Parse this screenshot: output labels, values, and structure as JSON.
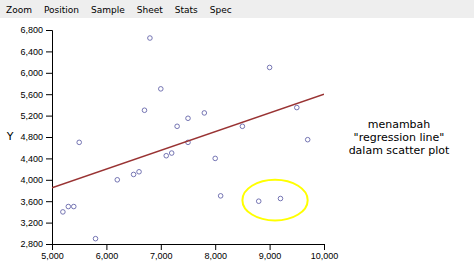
{
  "chart_data": {
    "type": "scatter",
    "ylabel": "Y",
    "annotation": "menambah\n\"regression line\"\ndalam scatter plot",
    "toolbar": [
      "Zoom",
      "Position",
      "Sample",
      "Sheet",
      "Stats",
      "Spec"
    ],
    "grid": false,
    "series": [
      {
        "type": "scatter",
        "marker": "circle",
        "color": "#6666aa",
        "x": [
          5200,
          5300,
          5400,
          5500,
          5800,
          6200,
          6500,
          6600,
          6700,
          6800,
          7000,
          7100,
          7200,
          7300,
          7500,
          7500,
          7800,
          8000,
          8100,
          8500,
          8800,
          9000,
          9200,
          9500,
          9700
        ],
        "values": [
          3400,
          3500,
          3500,
          4700,
          2900,
          4000,
          4100,
          4150,
          5300,
          6650,
          5700,
          4450,
          4500,
          5000,
          4700,
          5150,
          5250,
          4400,
          3700,
          5000,
          3600,
          6100,
          3650,
          5350,
          4750
        ]
      },
      {
        "type": "line",
        "line_style": "solid",
        "color": "#993333",
        "x": [
          5000,
          10000
        ],
        "values": [
          3850,
          5600
        ]
      }
    ],
    "highlight": {
      "x": 9100,
      "y": 3620,
      "rx": 600,
      "ry": 380,
      "color": "yellow"
    },
    "xlim": [
      5000,
      10000
    ],
    "ylim": [
      2800,
      6800
    ],
    "xticks": [
      {
        "value": 5000,
        "label": "5,000"
      },
      {
        "value": 6000,
        "label": "6,000"
      },
      {
        "value": 7000,
        "label": "7,000"
      },
      {
        "value": 8000,
        "label": "8,000"
      },
      {
        "value": 9000,
        "label": "9,000"
      },
      {
        "value": 10000,
        "label": "10,000"
      }
    ],
    "yticks": [
      {
        "value": 2800,
        "label": "2,800"
      },
      {
        "value": 3200,
        "label": "3,200"
      },
      {
        "value": 3600,
        "label": "3,600"
      },
      {
        "value": 4000,
        "label": "4,000"
      },
      {
        "value": 4400,
        "label": "4,400"
      },
      {
        "value": 4800,
        "label": "4,800"
      },
      {
        "value": 5200,
        "label": "5,200"
      },
      {
        "value": 5600,
        "label": "5,600"
      },
      {
        "value": 6000,
        "label": "6,000"
      },
      {
        "value": 6400,
        "label": "6,400"
      },
      {
        "value": 6800,
        "label": "6,800"
      }
    ]
  }
}
